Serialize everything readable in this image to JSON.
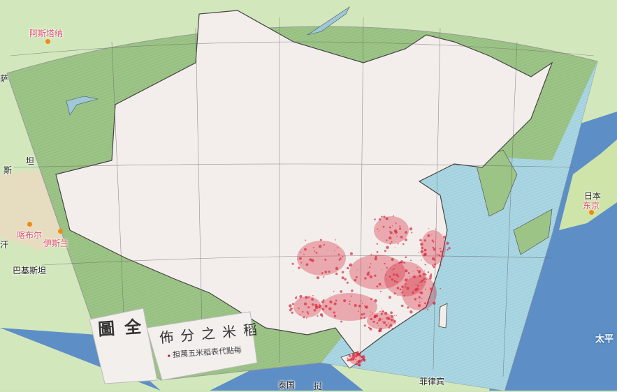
{
  "map": {
    "colors": {
      "land": "#cfe6b8",
      "ocean": "#5f8fc8",
      "overlay_outside": "#9fc48a",
      "overlay_sea": "#a8d4e0",
      "china": "#f4efec",
      "rice_dots": "#d8283c"
    },
    "basemap_labels": [
      {
        "text": "阿斯塔纳",
        "style": "red",
        "capital": true
      },
      {
        "text": "萨",
        "style": "black"
      },
      {
        "text": "坦",
        "style": "black"
      },
      {
        "text": "斯",
        "style": "black"
      },
      {
        "text": "喀布尔",
        "style": "red",
        "capital": true
      },
      {
        "text": "伊斯兰",
        "style": "red",
        "capital": true
      },
      {
        "text": "汗",
        "style": "black"
      },
      {
        "text": "巴基斯坦",
        "style": "black"
      },
      {
        "text": "泰国",
        "style": "black"
      },
      {
        "text": "挝",
        "style": "black"
      },
      {
        "text": "菲律宾",
        "style": "black"
      },
      {
        "text": "日本",
        "style": "black"
      },
      {
        "text": "东京",
        "style": "red",
        "capital": true
      },
      {
        "text": "太平",
        "style": "white"
      }
    ],
    "overlay": {
      "title_part1": "圖全",
      "title_part2": "佈分之米稻",
      "legend_text": "担萬五米稻表代點每"
    }
  }
}
